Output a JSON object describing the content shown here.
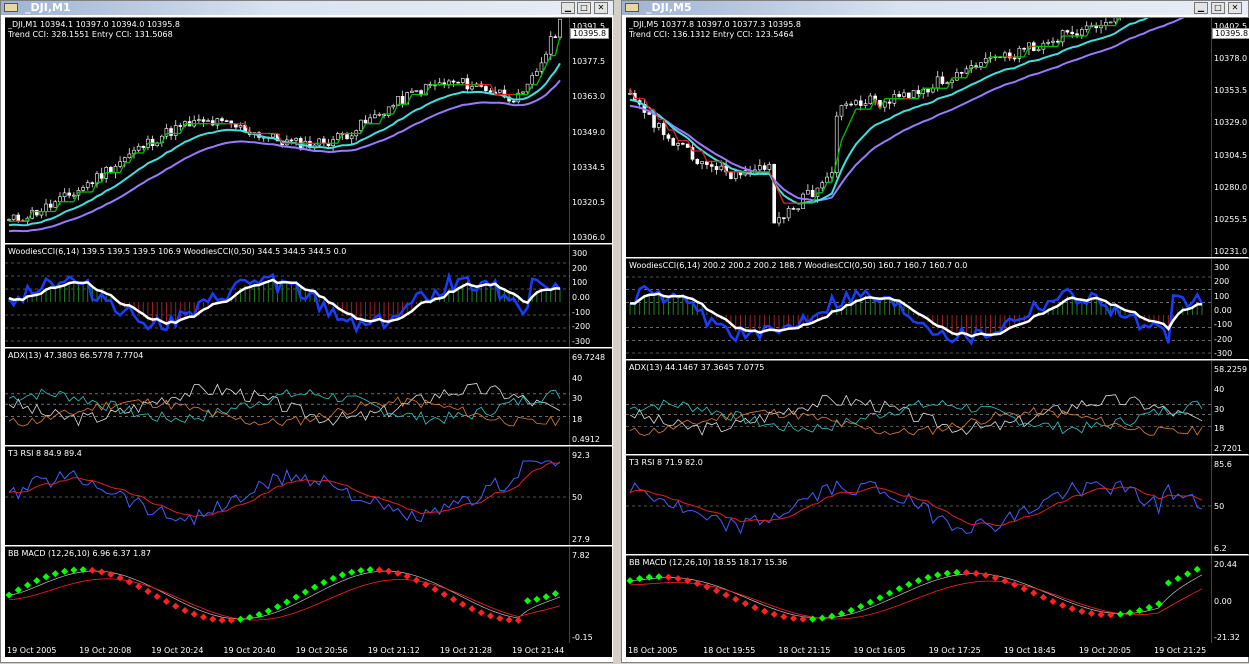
{
  "windows": [
    {
      "title": "_DJI,M1",
      "main": {
        "info": "_DJI,M1  10394.1 10397.0 10394.0 10395.8",
        "info2": "Trend CCI: 328.1551 Entry CCI: 131.5068",
        "scale": [
          "10391.5",
          "10377.5",
          "10363.0",
          "10349.0",
          "10334.5",
          "10320.5",
          "10306.0"
        ],
        "price": "10395.8"
      },
      "cci": {
        "label": "WoodiesCCI(6,14) 139.5 139.5 139.5 106.9  WoodiesCCI(0,50) 344.5 344.5 344.5 0.0",
        "scale": [
          "300",
          "200",
          "100",
          "0.00",
          "-100",
          "-200",
          "-300"
        ]
      },
      "adx": {
        "label": "ADX(13) 47.3803 66.5778 7.7704",
        "scale": [
          "69.7248",
          "40",
          "30",
          "18",
          "0.4912"
        ]
      },
      "rsi": {
        "label": "T3 RSI 8 84.9 89.4",
        "scale": [
          "92.3",
          "50",
          "27.9"
        ]
      },
      "macd": {
        "label": "BB MACD (12,26,10) 6.96 6.37 1.87",
        "scale": [
          "7.82",
          "-0.15"
        ]
      },
      "xlabels": [
        "19 Oct 2005",
        "19 Oct 20:08",
        "19 Oct 20:24",
        "19 Oct 20:40",
        "19 Oct 20:56",
        "19 Oct 21:12",
        "19 Oct 21:28",
        "19 Oct 21:44"
      ]
    },
    {
      "title": "_DJI,M5",
      "main": {
        "info": "_DJI,M5  10377.8 10397.0 10377.3 10395.8",
        "info2": "Trend CCI: 136.1312 Entry CCI: 123.5464",
        "scale": [
          "10402.5",
          "10378.0",
          "10353.5",
          "10329.0",
          "10304.5",
          "10280.0",
          "10255.5",
          "10231.0"
        ],
        "price": "10395.8"
      },
      "cci": {
        "label": "WoodiesCCI(6,14) 200.2 200.2 200.2 188.7  WoodiesCCI(0,50) 160.7 160.7 160.7 0.0",
        "scale": [
          "300",
          "200",
          "100",
          "0.00",
          "-100",
          "-200",
          "-300"
        ]
      },
      "adx": {
        "label": "ADX(13) 44.1467 37.3645 7.0775",
        "scale": [
          "58.2259",
          "40",
          "30",
          "18",
          "2.7201"
        ]
      },
      "rsi": {
        "label": "T3 RSI 8 71.9 82.0",
        "scale": [
          "85.6",
          "50",
          "6.2"
        ]
      },
      "macd": {
        "label": "BB MACD (12,26,10) 18.55 18.17 15.36",
        "scale": [
          "20.44",
          "0.00",
          "-21.32"
        ]
      },
      "xlabels": [
        "18 Oct 2005",
        "18 Oct 19:55",
        "18 Oct 21:15",
        "19 Oct 16:05",
        "19 Oct 17:25",
        "19 Oct 18:45",
        "19 Oct 20:05",
        "19 Oct 21:25"
      ]
    }
  ],
  "colors": {
    "candle_up": "#ffffff",
    "ma_fast": "#40e0e0",
    "ma_slow": "#9a7bff",
    "trend_up": "#00c000",
    "trend_dn": "#e02020",
    "cci_blue": "#1a3cff",
    "rsi_blue": "#4060ff",
    "rsi_red": "#e02020",
    "adx_white": "#e0e0e0",
    "adx_cyan": "#30c8c8",
    "adx_orange": "#e08030",
    "macd_green": "#00ff00",
    "macd_red": "#ff2020"
  },
  "icons": {
    "window": "chart-window-icon",
    "minimize": "minimize-icon",
    "maximize": "maximize-icon",
    "close": "close-icon"
  }
}
